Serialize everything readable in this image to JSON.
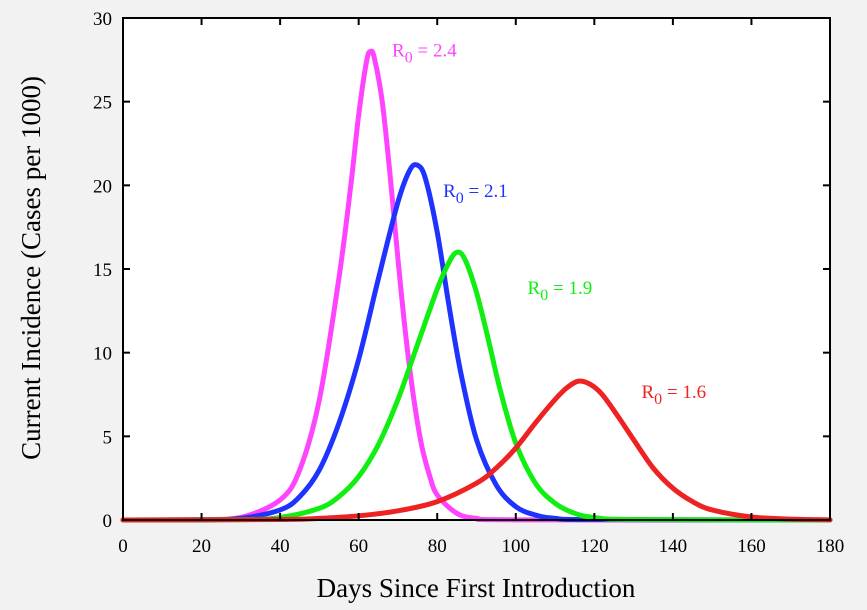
{
  "chart_data": {
    "type": "line",
    "xlabel": "Days Since First Introduction",
    "ylabel": "Current Incidence (Cases per 1000)",
    "xlim": [
      0,
      180
    ],
    "ylim": [
      0,
      30
    ],
    "xticks": [
      0,
      20,
      40,
      60,
      80,
      100,
      120,
      140,
      160,
      180
    ],
    "yticks": [
      0,
      5,
      10,
      15,
      20,
      25,
      30
    ],
    "grid": false,
    "series": [
      {
        "name": "R0 = 2.4",
        "label_main": "R",
        "label_sub": "0",
        "label_rest": " = 2.4",
        "color": "#ff44ff",
        "label_at": [
          68.5,
          27.7
        ],
        "peak_x": 63,
        "peak_y": 28.0,
        "points": [
          [
            0,
            0
          ],
          [
            20,
            0.02
          ],
          [
            30,
            0.15
          ],
          [
            40,
            1.2
          ],
          [
            45,
            3.0
          ],
          [
            50,
            7.2
          ],
          [
            55,
            14.5
          ],
          [
            58,
            20.0
          ],
          [
            60,
            24.2
          ],
          [
            62,
            27.4
          ],
          [
            63,
            28.0
          ],
          [
            64,
            27.6
          ],
          [
            66,
            25.0
          ],
          [
            68,
            20.6
          ],
          [
            70,
            15.6
          ],
          [
            72,
            11.0
          ],
          [
            74,
            7.3
          ],
          [
            76,
            4.5
          ],
          [
            78,
            2.7
          ],
          [
            80,
            1.5
          ],
          [
            85,
            0.4
          ],
          [
            90,
            0.1
          ],
          [
            100,
            0.01
          ],
          [
            180,
            0
          ]
        ]
      },
      {
        "name": "R0 = 2.1",
        "label_main": "R",
        "label_sub": "0",
        "label_rest": " = 2.1",
        "color": "#1f33ff",
        "label_at": [
          81.5,
          19.3
        ],
        "peak_x": 75,
        "peak_y": 21.2,
        "points": [
          [
            0,
            0
          ],
          [
            20,
            0.01
          ],
          [
            30,
            0.1
          ],
          [
            40,
            0.6
          ],
          [
            45,
            1.4
          ],
          [
            50,
            3.0
          ],
          [
            55,
            5.8
          ],
          [
            60,
            9.6
          ],
          [
            65,
            14.4
          ],
          [
            70,
            19.0
          ],
          [
            73,
            20.9
          ],
          [
            75,
            21.2
          ],
          [
            77,
            20.4
          ],
          [
            80,
            17.2
          ],
          [
            83,
            12.8
          ],
          [
            86,
            8.8
          ],
          [
            90,
            4.8
          ],
          [
            95,
            2.1
          ],
          [
            100,
            0.8
          ],
          [
            105,
            0.3
          ],
          [
            110,
            0.1
          ],
          [
            120,
            0.02
          ],
          [
            180,
            0
          ]
        ]
      },
      {
        "name": "R0 = 1.9",
        "label_main": "R",
        "label_sub": "0",
        "label_rest": " = 1.9",
        "color": "#11ee11",
        "label_at": [
          103,
          13.5
        ],
        "peak_x": 85,
        "peak_y": 16.0,
        "points": [
          [
            0,
            0
          ],
          [
            30,
            0.02
          ],
          [
            40,
            0.15
          ],
          [
            50,
            0.7
          ],
          [
            55,
            1.4
          ],
          [
            60,
            2.6
          ],
          [
            65,
            4.5
          ],
          [
            70,
            7.2
          ],
          [
            75,
            10.5
          ],
          [
            80,
            13.8
          ],
          [
            83,
            15.4
          ],
          [
            85,
            16.0
          ],
          [
            87,
            15.6
          ],
          [
            90,
            13.6
          ],
          [
            93,
            10.8
          ],
          [
            96,
            7.8
          ],
          [
            100,
            4.6
          ],
          [
            105,
            2.2
          ],
          [
            110,
            1.0
          ],
          [
            115,
            0.4
          ],
          [
            120,
            0.15
          ],
          [
            130,
            0.03
          ],
          [
            180,
            0
          ]
        ]
      },
      {
        "name": "R0 = 1.6",
        "label_main": "R",
        "label_sub": "0",
        "label_rest": " = 1.6",
        "color": "#ee2222",
        "label_at": [
          132,
          7.3
        ],
        "peak_x": 116,
        "peak_y": 8.3,
        "points": [
          [
            0,
            0
          ],
          [
            40,
            0.03
          ],
          [
            50,
            0.1
          ],
          [
            60,
            0.25
          ],
          [
            70,
            0.55
          ],
          [
            80,
            1.1
          ],
          [
            90,
            2.2
          ],
          [
            95,
            3.1
          ],
          [
            100,
            4.3
          ],
          [
            105,
            5.8
          ],
          [
            110,
            7.2
          ],
          [
            113,
            7.9
          ],
          [
            116,
            8.3
          ],
          [
            119,
            8.1
          ],
          [
            122,
            7.5
          ],
          [
            126,
            6.2
          ],
          [
            130,
            4.8
          ],
          [
            135,
            3.1
          ],
          [
            140,
            1.9
          ],
          [
            145,
            1.1
          ],
          [
            150,
            0.6
          ],
          [
            160,
            0.18
          ],
          [
            170,
            0.05
          ],
          [
            180,
            0.01
          ]
        ]
      }
    ]
  }
}
